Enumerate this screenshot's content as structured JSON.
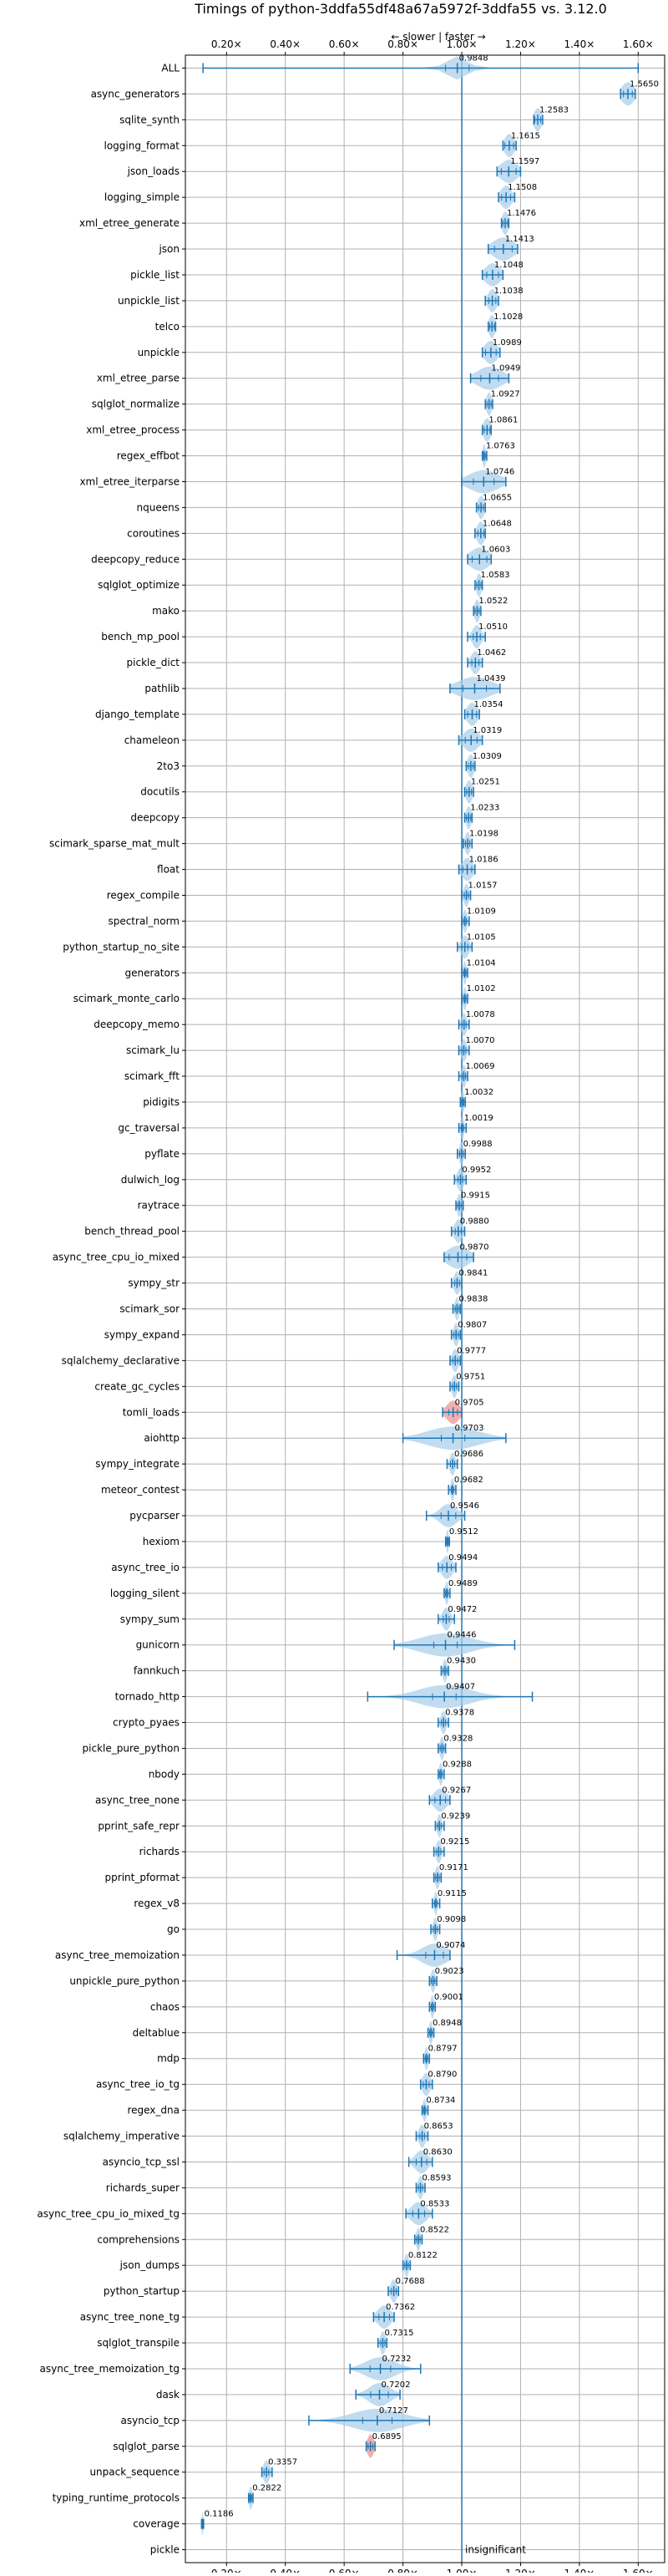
{
  "chart_data": {
    "type": "violin",
    "title": "Timings of python-3ddfa55df48a67a5972f-3ddfa55 vs. 3.12.0",
    "axis_hint": "← slower | faster →",
    "xlabel": "",
    "ylabel": "",
    "xlim": [
      0.06,
      1.69
    ],
    "xticks": [
      "0.20×",
      "0.40×",
      "0.60×",
      "0.80×",
      "1.00×",
      "1.20×",
      "1.40×",
      "1.60×"
    ],
    "xtick_values": [
      0.2,
      0.4,
      0.6,
      0.8,
      1.0,
      1.2,
      1.4,
      1.6
    ],
    "reference_line": 1.0,
    "grid": true,
    "colors": {
      "body": "#a6cdea",
      "line": "#1f77b4",
      "highlight": "#e88e8e",
      "grid": "#b0b0b0",
      "text": "#000000"
    },
    "benchmarks": [
      {
        "name": "ALL",
        "value": 0.9848,
        "label": "0.9848",
        "lo": 0.12,
        "hi": 1.6,
        "spread": 0.05,
        "q": 0.04
      },
      {
        "name": "async_generators",
        "value": 1.565,
        "label": "1.5650",
        "lo": 1.54,
        "hi": 1.59,
        "spread": 0.03,
        "q": 0.015
      },
      {
        "name": "sqlite_synth",
        "value": 1.2583,
        "label": "1.2583",
        "lo": 1.245,
        "hi": 1.275,
        "spread": 0.018,
        "q": 0.01
      },
      {
        "name": "logging_format",
        "value": 1.1615,
        "label": "1.1615",
        "lo": 1.14,
        "hi": 1.185,
        "spread": 0.022,
        "q": 0.015
      },
      {
        "name": "json_loads",
        "value": 1.1597,
        "label": "1.1597",
        "lo": 1.12,
        "hi": 1.2,
        "spread": 0.04,
        "q": 0.025
      },
      {
        "name": "logging_simple",
        "value": 1.1508,
        "label": "1.1508",
        "lo": 1.125,
        "hi": 1.18,
        "spread": 0.025,
        "q": 0.015
      },
      {
        "name": "xml_etree_generate",
        "value": 1.1476,
        "label": "1.1476",
        "lo": 1.135,
        "hi": 1.16,
        "spread": 0.015,
        "q": 0.008
      },
      {
        "name": "json",
        "value": 1.1413,
        "label": "1.1413",
        "lo": 1.09,
        "hi": 1.19,
        "spread": 0.05,
        "q": 0.03
      },
      {
        "name": "pickle_list",
        "value": 1.1048,
        "label": "1.1048",
        "lo": 1.07,
        "hi": 1.14,
        "spread": 0.035,
        "q": 0.02
      },
      {
        "name": "unpickle_list",
        "value": 1.1038,
        "label": "1.1038",
        "lo": 1.08,
        "hi": 1.125,
        "spread": 0.02,
        "q": 0.012
      },
      {
        "name": "telco",
        "value": 1.1028,
        "label": "1.1028",
        "lo": 1.09,
        "hi": 1.115,
        "spread": 0.015,
        "q": 0.008
      },
      {
        "name": "unpickle",
        "value": 1.0989,
        "label": "1.0989",
        "lo": 1.07,
        "hi": 1.13,
        "spread": 0.03,
        "q": 0.018
      },
      {
        "name": "xml_etree_parse",
        "value": 1.0949,
        "label": "1.0949",
        "lo": 1.03,
        "hi": 1.16,
        "spread": 0.06,
        "q": 0.03
      },
      {
        "name": "sqlglot_normalize",
        "value": 1.0927,
        "label": "1.0927",
        "lo": 1.08,
        "hi": 1.105,
        "spread": 0.012,
        "q": 0.007
      },
      {
        "name": "xml_etree_process",
        "value": 1.0861,
        "label": "1.0861",
        "lo": 1.07,
        "hi": 1.1,
        "spread": 0.018,
        "q": 0.01
      },
      {
        "name": "regex_effbot",
        "value": 1.0763,
        "label": "1.0763",
        "lo": 1.07,
        "hi": 1.085,
        "spread": 0.008,
        "q": 0.004
      },
      {
        "name": "xml_etree_iterparse",
        "value": 1.0746,
        "label": "1.0746",
        "lo": 1.0,
        "hi": 1.15,
        "spread": 0.07,
        "q": 0.035
      },
      {
        "name": "nqueens",
        "value": 1.0655,
        "label": "1.0655",
        "lo": 1.05,
        "hi": 1.08,
        "spread": 0.015,
        "q": 0.008
      },
      {
        "name": "coroutines",
        "value": 1.0648,
        "label": "1.0648",
        "lo": 1.045,
        "hi": 1.08,
        "spread": 0.018,
        "q": 0.01
      },
      {
        "name": "deepcopy_reduce",
        "value": 1.0603,
        "label": "1.0603",
        "lo": 1.02,
        "hi": 1.1,
        "spread": 0.045,
        "q": 0.025
      },
      {
        "name": "sqlglot_optimize",
        "value": 1.0583,
        "label": "1.0583",
        "lo": 1.045,
        "hi": 1.07,
        "spread": 0.012,
        "q": 0.007
      },
      {
        "name": "mako",
        "value": 1.0522,
        "label": "1.0522",
        "lo": 1.04,
        "hi": 1.065,
        "spread": 0.012,
        "q": 0.007
      },
      {
        "name": "bench_mp_pool",
        "value": 1.051,
        "label": "1.0510",
        "lo": 1.02,
        "hi": 1.08,
        "spread": 0.02,
        "q": 0.012
      },
      {
        "name": "pickle_dict",
        "value": 1.0462,
        "label": "1.0462",
        "lo": 1.02,
        "hi": 1.07,
        "spread": 0.02,
        "q": 0.012
      },
      {
        "name": "pathlib",
        "value": 1.0439,
        "label": "1.0439",
        "lo": 0.96,
        "hi": 1.13,
        "spread": 0.08,
        "q": 0.04
      },
      {
        "name": "django_template",
        "value": 1.0354,
        "label": "1.0354",
        "lo": 1.01,
        "hi": 1.06,
        "spread": 0.025,
        "q": 0.015
      },
      {
        "name": "chameleon",
        "value": 1.0319,
        "label": "1.0319",
        "lo": 0.99,
        "hi": 1.07,
        "spread": 0.035,
        "q": 0.02
      },
      {
        "name": "2to3",
        "value": 1.0309,
        "label": "1.0309",
        "lo": 1.015,
        "hi": 1.045,
        "spread": 0.015,
        "q": 0.008
      },
      {
        "name": "docutils",
        "value": 1.0251,
        "label": "1.0251",
        "lo": 1.01,
        "hi": 1.04,
        "spread": 0.015,
        "q": 0.008
      },
      {
        "name": "deepcopy",
        "value": 1.0233,
        "label": "1.0233",
        "lo": 1.01,
        "hi": 1.035,
        "spread": 0.012,
        "q": 0.007
      },
      {
        "name": "scimark_sparse_mat_mult",
        "value": 1.0198,
        "label": "1.0198",
        "lo": 1.005,
        "hi": 1.035,
        "spread": 0.012,
        "q": 0.007
      },
      {
        "name": "float",
        "value": 1.0186,
        "label": "1.0186",
        "lo": 0.99,
        "hi": 1.045,
        "spread": 0.025,
        "q": 0.015
      },
      {
        "name": "regex_compile",
        "value": 1.0157,
        "label": "1.0157",
        "lo": 1.0,
        "hi": 1.03,
        "spread": 0.012,
        "q": 0.007
      },
      {
        "name": "spectral_norm",
        "value": 1.0109,
        "label": "1.0109",
        "lo": 1.0,
        "hi": 1.025,
        "spread": 0.01,
        "q": 0.005
      },
      {
        "name": "python_startup_no_site",
        "value": 1.0105,
        "label": "1.0105",
        "lo": 0.985,
        "hi": 1.035,
        "spread": 0.018,
        "q": 0.01
      },
      {
        "name": "generators",
        "value": 1.0104,
        "label": "1.0104",
        "lo": 1.0,
        "hi": 1.02,
        "spread": 0.008,
        "q": 0.004
      },
      {
        "name": "scimark_monte_carlo",
        "value": 1.0102,
        "label": "1.0102",
        "lo": 1.0,
        "hi": 1.02,
        "spread": 0.008,
        "q": 0.004
      },
      {
        "name": "deepcopy_memo",
        "value": 1.0078,
        "label": "1.0078",
        "lo": 0.99,
        "hi": 1.025,
        "spread": 0.012,
        "q": 0.007
      },
      {
        "name": "scimark_lu",
        "value": 1.007,
        "label": "1.0070",
        "lo": 0.99,
        "hi": 1.025,
        "spread": 0.012,
        "q": 0.007
      },
      {
        "name": "scimark_fft",
        "value": 1.0069,
        "label": "1.0069",
        "lo": 0.99,
        "hi": 1.02,
        "spread": 0.01,
        "q": 0.006
      },
      {
        "name": "pidigits",
        "value": 1.0032,
        "label": "1.0032",
        "lo": 0.995,
        "hi": 1.012,
        "spread": 0.008,
        "q": 0.004
      },
      {
        "name": "gc_traversal",
        "value": 1.0019,
        "label": "1.0019",
        "lo": 0.99,
        "hi": 1.015,
        "spread": 0.008,
        "q": 0.004
      },
      {
        "name": "pyflate",
        "value": 0.9988,
        "label": "0.9988",
        "lo": 0.985,
        "hi": 1.012,
        "spread": 0.01,
        "q": 0.006
      },
      {
        "name": "dulwich_log",
        "value": 0.9952,
        "label": "0.9952",
        "lo": 0.975,
        "hi": 1.015,
        "spread": 0.015,
        "q": 0.008
      },
      {
        "name": "raytrace",
        "value": 0.9915,
        "label": "0.9915",
        "lo": 0.98,
        "hi": 1.005,
        "spread": 0.01,
        "q": 0.006
      },
      {
        "name": "bench_thread_pool",
        "value": 0.988,
        "label": "0.9880",
        "lo": 0.965,
        "hi": 1.01,
        "spread": 0.018,
        "q": 0.01
      },
      {
        "name": "async_tree_cpu_io_mixed",
        "value": 0.987,
        "label": "0.9870",
        "lo": 0.94,
        "hi": 1.04,
        "spread": 0.05,
        "q": 0.03
      },
      {
        "name": "sympy_str",
        "value": 0.9841,
        "label": "0.9841",
        "lo": 0.965,
        "hi": 1.0,
        "spread": 0.015,
        "q": 0.008
      },
      {
        "name": "scimark_sor",
        "value": 0.9838,
        "label": "0.9838",
        "lo": 0.97,
        "hi": 0.995,
        "spread": 0.01,
        "q": 0.006
      },
      {
        "name": "sympy_expand",
        "value": 0.9807,
        "label": "0.9807",
        "lo": 0.965,
        "hi": 0.995,
        "spread": 0.012,
        "q": 0.007
      },
      {
        "name": "sqlalchemy_declarative",
        "value": 0.9777,
        "label": "0.9777",
        "lo": 0.96,
        "hi": 0.995,
        "spread": 0.015,
        "q": 0.008
      },
      {
        "name": "create_gc_cycles",
        "value": 0.9751,
        "label": "0.9751",
        "lo": 0.96,
        "hi": 0.99,
        "spread": 0.012,
        "q": 0.007
      },
      {
        "name": "tomli_loads",
        "value": 0.9705,
        "label": "0.9705",
        "lo": 0.935,
        "hi": 1.0,
        "spread": 0.03,
        "q": 0.015,
        "highlight": true
      },
      {
        "name": "aiohttp",
        "value": 0.9703,
        "label": "0.9703",
        "lo": 0.8,
        "hi": 1.15,
        "spread": 0.12,
        "q": 0.04
      },
      {
        "name": "sympy_integrate",
        "value": 0.9686,
        "label": "0.9686",
        "lo": 0.95,
        "hi": 0.985,
        "spread": 0.012,
        "q": 0.007
      },
      {
        "name": "meteor_contest",
        "value": 0.9682,
        "label": "0.9682",
        "lo": 0.955,
        "hi": 0.98,
        "spread": 0.008,
        "q": 0.004
      },
      {
        "name": "pycparser",
        "value": 0.9546,
        "label": "0.9546",
        "lo": 0.88,
        "hi": 1.01,
        "spread": 0.04,
        "q": 0.025
      },
      {
        "name": "hexiom",
        "value": 0.9512,
        "label": "0.9512",
        "lo": 0.945,
        "hi": 0.958,
        "spread": 0.006,
        "q": 0.003
      },
      {
        "name": "async_tree_io",
        "value": 0.9494,
        "label": "0.9494",
        "lo": 0.92,
        "hi": 0.98,
        "spread": 0.025,
        "q": 0.015
      },
      {
        "name": "logging_silent",
        "value": 0.9489,
        "label": "0.9489",
        "lo": 0.94,
        "hi": 0.96,
        "spread": 0.008,
        "q": 0.004
      },
      {
        "name": "sympy_sum",
        "value": 0.9472,
        "label": "0.9472",
        "lo": 0.92,
        "hi": 0.975,
        "spread": 0.018,
        "q": 0.01
      },
      {
        "name": "gunicorn",
        "value": 0.9446,
        "label": "0.9446",
        "lo": 0.77,
        "hi": 1.18,
        "spread": 0.12,
        "q": 0.04
      },
      {
        "name": "fannkuch",
        "value": 0.943,
        "label": "0.9430",
        "lo": 0.93,
        "hi": 0.955,
        "spread": 0.01,
        "q": 0.006
      },
      {
        "name": "tornado_http",
        "value": 0.9407,
        "label": "0.9407",
        "lo": 0.68,
        "hi": 1.24,
        "spread": 0.12,
        "q": 0.04
      },
      {
        "name": "crypto_pyaes",
        "value": 0.9378,
        "label": "0.9378",
        "lo": 0.92,
        "hi": 0.955,
        "spread": 0.012,
        "q": 0.007
      },
      {
        "name": "pickle_pure_python",
        "value": 0.9328,
        "label": "0.9328",
        "lo": 0.92,
        "hi": 0.945,
        "spread": 0.01,
        "q": 0.006
      },
      {
        "name": "nbody",
        "value": 0.9288,
        "label": "0.9288",
        "lo": 0.92,
        "hi": 0.94,
        "spread": 0.008,
        "q": 0.004
      },
      {
        "name": "async_tree_none",
        "value": 0.9267,
        "label": "0.9267",
        "lo": 0.89,
        "hi": 0.96,
        "spread": 0.03,
        "q": 0.018
      },
      {
        "name": "pprint_safe_repr",
        "value": 0.9239,
        "label": "0.9239",
        "lo": 0.91,
        "hi": 0.94,
        "spread": 0.01,
        "q": 0.006
      },
      {
        "name": "richards",
        "value": 0.9215,
        "label": "0.9215",
        "lo": 0.905,
        "hi": 0.94,
        "spread": 0.012,
        "q": 0.007
      },
      {
        "name": "pprint_pformat",
        "value": 0.9171,
        "label": "0.9171",
        "lo": 0.905,
        "hi": 0.93,
        "spread": 0.01,
        "q": 0.006
      },
      {
        "name": "regex_v8",
        "value": 0.9115,
        "label": "0.9115",
        "lo": 0.9,
        "hi": 0.925,
        "spread": 0.008,
        "q": 0.004
      },
      {
        "name": "go",
        "value": 0.9098,
        "label": "0.9098",
        "lo": 0.895,
        "hi": 0.925,
        "spread": 0.01,
        "q": 0.006
      },
      {
        "name": "async_tree_memoization",
        "value": 0.9074,
        "label": "0.9074",
        "lo": 0.78,
        "hi": 0.96,
        "spread": 0.06,
        "q": 0.03
      },
      {
        "name": "unpickle_pure_python",
        "value": 0.9023,
        "label": "0.9023",
        "lo": 0.89,
        "hi": 0.915,
        "spread": 0.01,
        "q": 0.006
      },
      {
        "name": "chaos",
        "value": 0.9001,
        "label": "0.9001",
        "lo": 0.89,
        "hi": 0.91,
        "spread": 0.008,
        "q": 0.004
      },
      {
        "name": "deltablue",
        "value": 0.8948,
        "label": "0.8948",
        "lo": 0.885,
        "hi": 0.905,
        "spread": 0.008,
        "q": 0.004
      },
      {
        "name": "mdp",
        "value": 0.8797,
        "label": "0.8797",
        "lo": 0.87,
        "hi": 0.89,
        "spread": 0.008,
        "q": 0.004
      },
      {
        "name": "async_tree_io_tg",
        "value": 0.879,
        "label": "0.8790",
        "lo": 0.86,
        "hi": 0.9,
        "spread": 0.018,
        "q": 0.01
      },
      {
        "name": "regex_dna",
        "value": 0.8734,
        "label": "0.8734",
        "lo": 0.865,
        "hi": 0.885,
        "spread": 0.008,
        "q": 0.004
      },
      {
        "name": "sqlalchemy_imperative",
        "value": 0.8653,
        "label": "0.8653",
        "lo": 0.845,
        "hi": 0.885,
        "spread": 0.015,
        "q": 0.008
      },
      {
        "name": "asyncio_tcp_ssl",
        "value": 0.863,
        "label": "0.8630",
        "lo": 0.82,
        "hi": 0.9,
        "spread": 0.03,
        "q": 0.018
      },
      {
        "name": "richards_super",
        "value": 0.8593,
        "label": "0.8593",
        "lo": 0.845,
        "hi": 0.875,
        "spread": 0.012,
        "q": 0.007
      },
      {
        "name": "async_tree_cpu_io_mixed_tg",
        "value": 0.8533,
        "label": "0.8533",
        "lo": 0.81,
        "hi": 0.9,
        "spread": 0.035,
        "q": 0.02
      },
      {
        "name": "comprehensions",
        "value": 0.8522,
        "label": "0.8522",
        "lo": 0.84,
        "hi": 0.865,
        "spread": 0.01,
        "q": 0.006
      },
      {
        "name": "json_dumps",
        "value": 0.8122,
        "label": "0.8122",
        "lo": 0.8,
        "hi": 0.825,
        "spread": 0.01,
        "q": 0.006
      },
      {
        "name": "python_startup",
        "value": 0.7688,
        "label": "0.7688",
        "lo": 0.75,
        "hi": 0.785,
        "spread": 0.015,
        "q": 0.008
      },
      {
        "name": "async_tree_none_tg",
        "value": 0.7362,
        "label": "0.7362",
        "lo": 0.7,
        "hi": 0.77,
        "spread": 0.03,
        "q": 0.018
      },
      {
        "name": "sqlglot_transpile",
        "value": 0.7315,
        "label": "0.7315",
        "lo": 0.715,
        "hi": 0.745,
        "spread": 0.012,
        "q": 0.007
      },
      {
        "name": "async_tree_memoization_tg",
        "value": 0.7232,
        "label": "0.7232",
        "lo": 0.62,
        "hi": 0.86,
        "spread": 0.07,
        "q": 0.035
      },
      {
        "name": "dask",
        "value": 0.7202,
        "label": "0.7202",
        "lo": 0.64,
        "hi": 0.79,
        "spread": 0.05,
        "q": 0.03
      },
      {
        "name": "asyncio_tcp",
        "value": 0.7127,
        "label": "0.7127",
        "lo": 0.48,
        "hi": 0.89,
        "spread": 0.12,
        "q": 0.05
      },
      {
        "name": "sqlglot_parse",
        "value": 0.6895,
        "label": "0.6895",
        "lo": 0.675,
        "hi": 0.705,
        "spread": 0.015,
        "q": 0.008,
        "highlight": true
      },
      {
        "name": "unpack_sequence",
        "value": 0.3357,
        "label": "0.3357",
        "lo": 0.32,
        "hi": 0.355,
        "spread": 0.015,
        "q": 0.008
      },
      {
        "name": "typing_runtime_protocols",
        "value": 0.2822,
        "label": "0.2822",
        "lo": 0.275,
        "hi": 0.29,
        "spread": 0.008,
        "q": 0.004
      },
      {
        "name": "coverage",
        "value": 0.1186,
        "label": "0.1186",
        "lo": 0.115,
        "hi": 0.122,
        "spread": 0.004,
        "q": 0.002
      },
      {
        "name": "pickle",
        "value": null,
        "label": "insignificant",
        "lo": null,
        "hi": null,
        "spread": 0,
        "q": 0
      }
    ]
  }
}
